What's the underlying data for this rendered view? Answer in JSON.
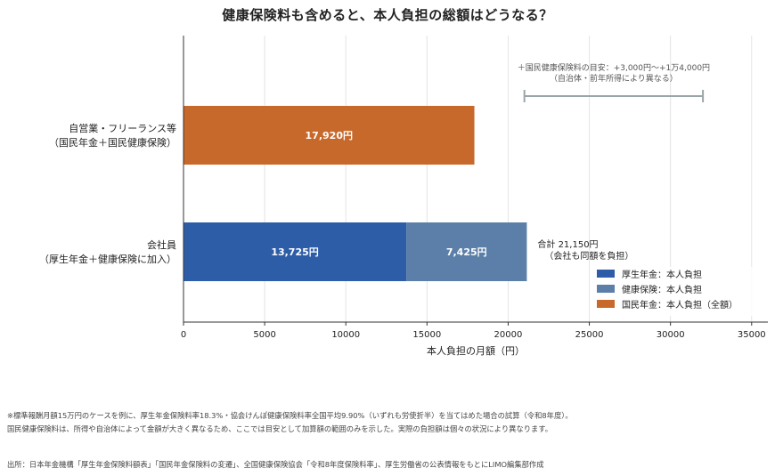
{
  "title": "健康保険料も含めると、本人負担の総額はどうなる？",
  "chart_data": {
    "type": "bar",
    "orientation": "horizontal",
    "stacked": true,
    "categories": [
      {
        "line1": "自営業・フリーランス等",
        "line2": "（国民年金＋国民健康保険）"
      },
      {
        "line1": "会社員",
        "line2": "（厚生年金＋健康保険に加入）"
      }
    ],
    "series": [
      {
        "name": "厚生年金：本人負担",
        "color": "#2e5da8",
        "values": [
          0,
          13725
        ],
        "labels": [
          "",
          "13,725円"
        ]
      },
      {
        "name": "健康保険：本人負担",
        "color": "#5b7fa8",
        "values": [
          0,
          7425
        ],
        "labels": [
          "",
          "7,425円"
        ]
      },
      {
        "name": "国民年金：本人負担（全額）",
        "color": "#c8692c",
        "values": [
          17920,
          0
        ],
        "labels": [
          "17,920円",
          ""
        ]
      }
    ],
    "xlabel": "本人負担の月額（円）",
    "xlim": [
      0,
      36000
    ],
    "xticks": [
      0,
      5000,
      10000,
      15000,
      20000,
      25000,
      30000,
      35000
    ],
    "grid": "vertical-dashed",
    "legend_position": "bottom-right",
    "range_annotation": {
      "from": 21000,
      "to": 32000,
      "text1": "＋国民健康保険料の目安：+3,000円〜+1万4,000円",
      "text2": "（自治体・前年所得により異なる）",
      "color": "#9aa5a8"
    },
    "total_annotation": {
      "line1": "合計 21,150円",
      "line2": "（会社も同額を負担）"
    }
  },
  "notes": [
    "※標準報酬月額15万円のケースを例に、厚生年金保険料率18.3%・協会けんぽ健康保険料率全国平均9.90%（いずれも労使折半）を当てはめた場合の試算（令和8年度）。",
    "国民健康保険料は、所得や自治体によって金額が大きく異なるため、ここでは目安として加算額の範囲のみを示した。実際の負担額は個々の状況により異なります。"
  ],
  "source": "出所：日本年金機構「厚生年金保険料額表」「国民年金保険料の変遷」、全国健康保険協会「令和8年度保険料率」、厚生労働省の公表情報をもとにLIMO編集部作成"
}
